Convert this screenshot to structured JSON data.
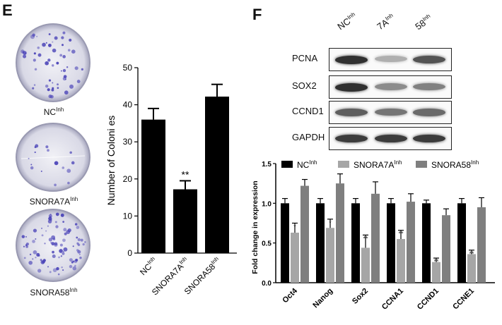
{
  "panel_e": {
    "letter": "E"
  },
  "panel_f": {
    "letter": "F"
  },
  "dishes": [
    {
      "label": "NC",
      "sup": "Inh"
    },
    {
      "label": "SNORA7A",
      "sup": "Inh"
    },
    {
      "label": "SNORA58",
      "sup": "Inh"
    }
  ],
  "blot": {
    "lane_labels": [
      {
        "label": "NC",
        "sup": "Inh"
      },
      {
        "label": "7A",
        "sup": "Inh"
      },
      {
        "label": "58",
        "sup": "Inh"
      }
    ],
    "rows": [
      {
        "name": "PCNA",
        "intensity": [
          0.9,
          0.35,
          0.75
        ]
      },
      {
        "name": "SOX2",
        "intensity": [
          0.9,
          0.5,
          0.55
        ]
      },
      {
        "name": "CCND1",
        "intensity": [
          0.7,
          0.6,
          0.65
        ]
      },
      {
        "name": "GAPDH",
        "intensity": [
          0.85,
          0.85,
          0.85
        ]
      }
    ]
  },
  "chart_data": [
    {
      "type": "bar",
      "categories": [
        "NC",
        "SNORA7A",
        "SNORA58"
      ],
      "category_sup": "Inh",
      "values": [
        36,
        17.2,
        42.2
      ],
      "errors": [
        3,
        2.3,
        3.3
      ],
      "annotations": [
        "",
        "**",
        ""
      ],
      "ylabel": "Number of Coloni es",
      "ylim": [
        0,
        50
      ],
      "yticks": [
        0,
        10,
        20,
        30,
        40,
        50
      ],
      "bar_color": "#000000"
    },
    {
      "type": "bar",
      "categories": [
        "Oct4",
        "Nanog",
        "Sox2",
        "CCNA1",
        "CCND1",
        "CCNE1"
      ],
      "ylabel": "Fold change in expression",
      "ylim": [
        0,
        1.5
      ],
      "yticks": [
        "0.0",
        "0.5",
        "1.0",
        "1.5"
      ],
      "series": [
        {
          "name": "NC",
          "sup": "Inh",
          "color": "#000000",
          "values": [
            1.0,
            1.0,
            1.0,
            1.0,
            1.0,
            1.0
          ],
          "errors": [
            0.06,
            0.06,
            0.06,
            0.06,
            0.04,
            0.06
          ],
          "annotations": [
            "",
            "",
            "",
            "",
            "",
            ""
          ]
        },
        {
          "name": "SNORA7A",
          "sup": "Inh",
          "color": "#a6a6a6",
          "values": [
            0.63,
            0.69,
            0.44,
            0.55,
            0.26,
            0.36
          ],
          "errors": [
            0.12,
            0.11,
            0.16,
            0.11,
            0.05,
            0.05
          ],
          "annotations": [
            "*",
            "*",
            "**",
            "**",
            "**",
            "**"
          ]
        },
        {
          "name": "SNORA58",
          "sup": "Inh",
          "color": "#7f7f7f",
          "values": [
            1.22,
            1.25,
            1.12,
            1.02,
            0.85,
            0.95
          ],
          "errors": [
            0.08,
            0.12,
            0.15,
            0.1,
            0.08,
            0.12
          ],
          "annotations": [
            "",
            "",
            "",
            "",
            "",
            ""
          ]
        }
      ]
    }
  ]
}
